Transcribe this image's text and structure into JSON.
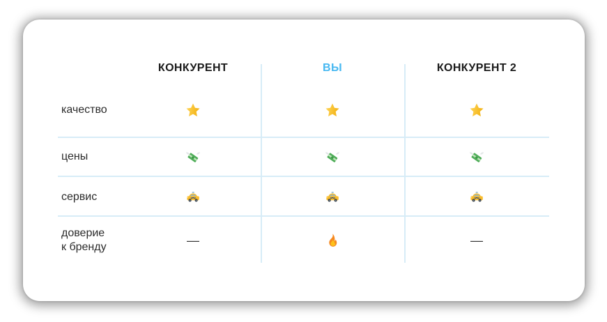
{
  "colors": {
    "you_accent": "#47B8F1",
    "divider": "#D7ECF7",
    "header_text": "#1A1A1A",
    "label_text": "#2B2B2B",
    "card_background": "#FFFFFF"
  },
  "table": {
    "column_headers": [
      "КОНКУРЕНТ",
      "ВЫ",
      "КОНКУРЕНТ 2"
    ],
    "rows": [
      {
        "label": "качество",
        "cells": [
          "star-icon",
          "star-icon",
          "star-icon"
        ]
      },
      {
        "label": "цены",
        "cells": [
          "money-wings-icon",
          "money-wings-icon",
          "money-wings-icon"
        ]
      },
      {
        "label": "сервис",
        "cells": [
          "taxi-icon",
          "taxi-icon",
          "taxi-icon"
        ]
      },
      {
        "label": "доверие\nк бренду",
        "cells": [
          "dash",
          "fire-icon",
          "dash"
        ]
      }
    ],
    "dash_char": "—"
  }
}
